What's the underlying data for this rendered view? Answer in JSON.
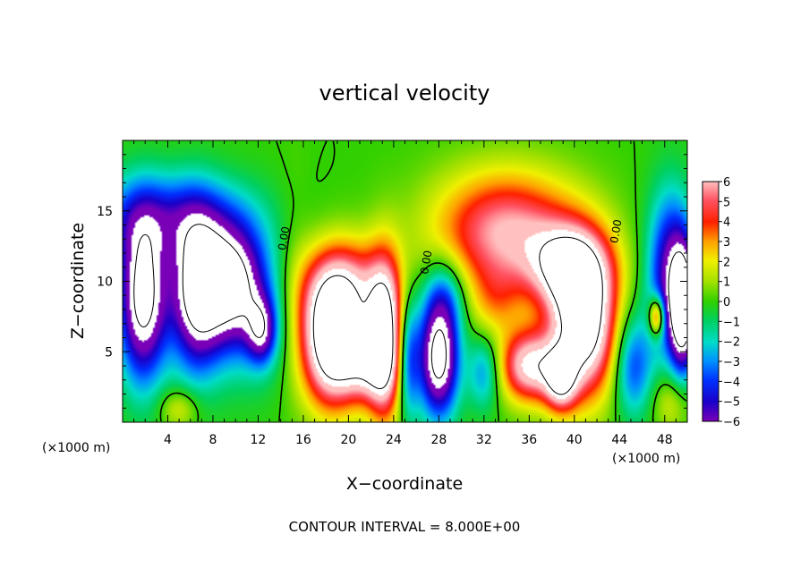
{
  "chart_data": {
    "type": "heatmap",
    "title": "vertical velocity",
    "xlabel": "X−coordinate",
    "ylabel": "Z−coordinate",
    "x_unit_left": "(×1000 m)",
    "x_unit_right": "(×1000 m)",
    "footer": "CONTOUR INTERVAL = 8.000E+00",
    "xlim": [
      0,
      50
    ],
    "ylim": [
      0,
      20
    ],
    "x_ticks": [
      "4",
      "8",
      "12",
      "16",
      "20",
      "24",
      "28",
      "32",
      "36",
      "40",
      "44",
      "48"
    ],
    "y_ticks": [
      "5",
      "10",
      "15"
    ],
    "colorbar": {
      "range": [
        -6,
        6
      ],
      "ticks": [
        "6",
        "5",
        "4",
        "3",
        "2",
        "1",
        "0",
        "−1",
        "−2",
        "−3",
        "−4",
        "−5",
        "−6"
      ]
    },
    "contour_labels": [
      {
        "text": "0.00",
        "x": 14.6,
        "z": 13
      },
      {
        "text": "0.00",
        "x": 27.2,
        "z": 11.3
      },
      {
        "text": "0.00",
        "x": 44.0,
        "z": 13.5
      }
    ],
    "features": [
      {
        "kind": "downdraft",
        "x": 1.5,
        "z": 8.5,
        "w": -8
      },
      {
        "kind": "downdraft",
        "x": 7.5,
        "z": 8.5,
        "w": -8
      },
      {
        "kind": "downdraft",
        "x": 11.5,
        "z": 6.0,
        "w": -6
      },
      {
        "kind": "updraft",
        "x": 18.5,
        "z": 6.0,
        "w": 8
      },
      {
        "kind": "updraft",
        "x": 23.0,
        "z": 6.5,
        "w": 8
      },
      {
        "kind": "downdraft",
        "x": 28.0,
        "z": 4.5,
        "w": -8
      },
      {
        "kind": "updraft",
        "x": 36.0,
        "z": 10.0,
        "w": 6
      },
      {
        "kind": "updraft",
        "x": 40.5,
        "z": 6.0,
        "w": 8
      },
      {
        "kind": "downdraft",
        "x": 49.5,
        "z": 8.0,
        "w": -8
      }
    ]
  }
}
